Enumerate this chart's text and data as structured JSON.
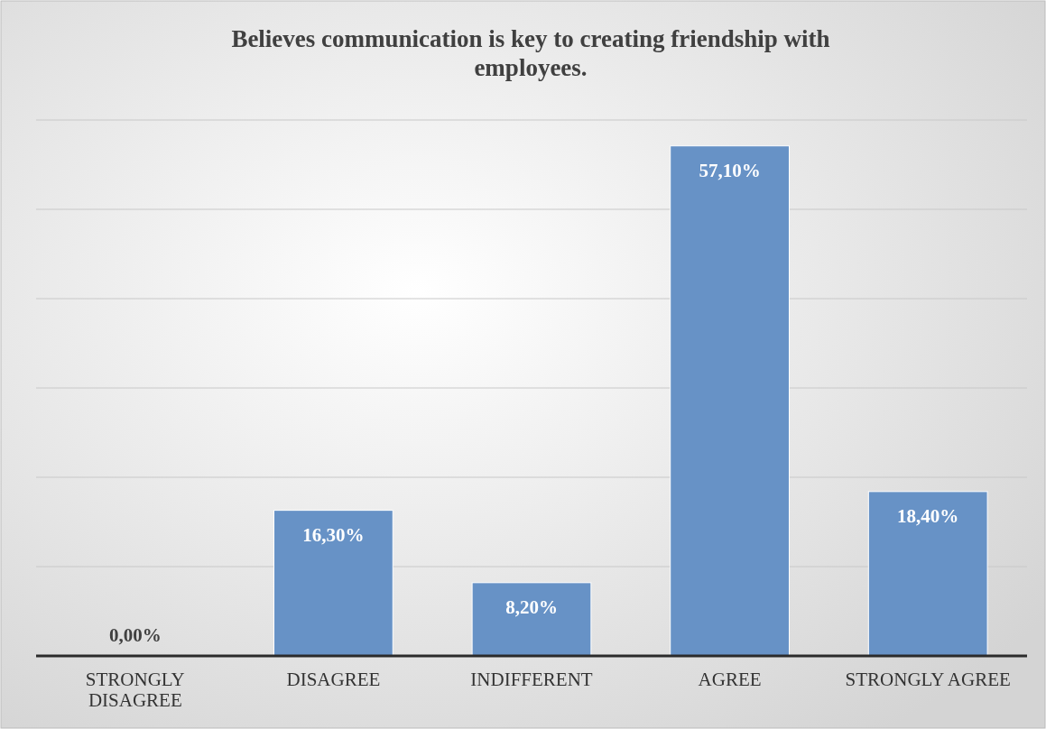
{
  "chart_data": {
    "type": "bar",
    "title": "Believes communication is key to creating friendship with employees.",
    "categories": [
      "STRONGLY DISAGREE",
      "DISAGREE",
      "INDIFFERENT",
      "AGREE",
      "STRONGLY AGREE"
    ],
    "values": [
      0,
      16.3,
      8.2,
      57.1,
      18.4
    ],
    "value_labels": [
      "0,00%",
      "16,30%",
      "8,20%",
      "57,10%",
      "18,40%"
    ],
    "color": "#6792c6",
    "ylim": [
      0,
      60
    ],
    "yticks": [
      {
        "value": 0,
        "label": null
      },
      {
        "value": 10,
        "label": null
      },
      {
        "value": 20,
        "label": null
      },
      {
        "value": 30,
        "label": null
      },
      {
        "value": 40,
        "label": null
      },
      {
        "value": 50,
        "label": null
      },
      {
        "value": 60,
        "label": null
      }
    ],
    "tick_labels": "x",
    "grid": "y"
  }
}
